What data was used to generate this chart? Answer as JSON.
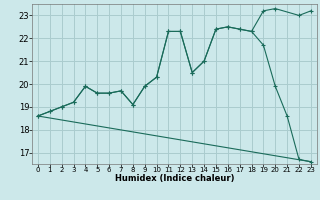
{
  "xlabel": "Humidex (Indice chaleur)",
  "background_color": "#cce8ea",
  "grid_color": "#aaccce",
  "line_color": "#1a6b5a",
  "xlim": [
    -0.5,
    23.5
  ],
  "ylim": [
    16.5,
    23.5
  ],
  "xticks": [
    0,
    1,
    2,
    3,
    4,
    5,
    6,
    7,
    8,
    9,
    10,
    11,
    12,
    13,
    14,
    15,
    16,
    17,
    18,
    19,
    20,
    21,
    22,
    23
  ],
  "yticks": [
    17,
    18,
    19,
    20,
    21,
    22,
    23
  ],
  "line1_x": [
    0,
    1,
    2,
    3,
    4,
    5,
    6,
    7,
    8,
    9,
    10,
    11,
    12,
    13,
    14,
    15,
    16,
    17,
    18,
    19,
    20,
    22,
    23
  ],
  "line1_y": [
    18.6,
    18.8,
    19.0,
    19.2,
    19.9,
    19.6,
    19.6,
    19.7,
    19.1,
    19.9,
    20.3,
    22.3,
    22.3,
    20.5,
    21.0,
    22.4,
    22.5,
    22.4,
    22.3,
    23.2,
    23.3,
    23.0,
    23.2
  ],
  "line2_x": [
    0,
    1,
    2,
    3,
    4,
    5,
    6,
    7,
    8,
    9,
    10,
    11,
    12,
    13,
    14,
    15,
    16,
    17,
    18,
    19,
    20,
    21,
    22,
    23
  ],
  "line2_y": [
    18.6,
    18.8,
    19.0,
    19.2,
    19.9,
    19.6,
    19.6,
    19.7,
    19.1,
    19.9,
    20.3,
    22.3,
    22.3,
    20.5,
    21.0,
    22.4,
    22.5,
    22.4,
    22.3,
    21.7,
    19.9,
    18.6,
    16.7,
    16.6
  ],
  "line3_x": [
    0,
    23
  ],
  "line3_y": [
    18.6,
    16.6
  ],
  "xlabel_fontsize": 6,
  "tick_fontsize": 5
}
